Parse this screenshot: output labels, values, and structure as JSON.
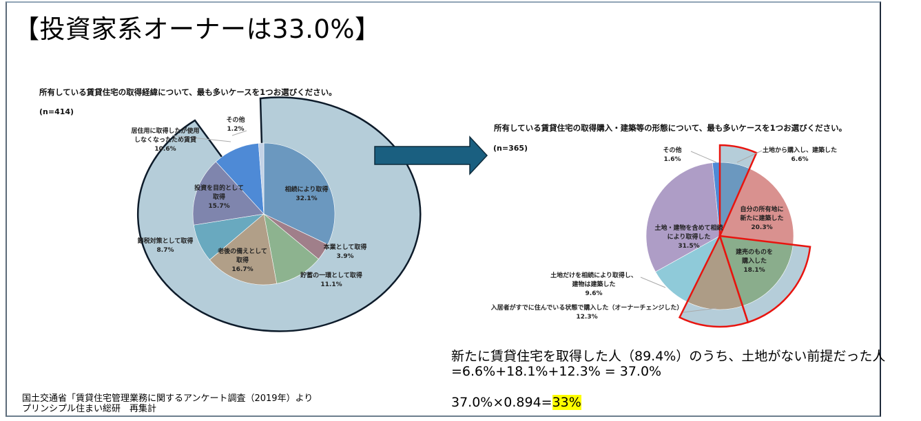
{
  "title": "【投資家系オーナーは33.0%】",
  "left_chart": {
    "question": "所有している賃貸住宅の取得経緯について、最も多いケースを1つお選びください。",
    "n": "(n=414)"
  },
  "right_chart": {
    "question": "所有している賃貸住宅の取得購入・建築等の形態について、最も多いケースを1つお選びください。",
    "n": "(n=365)"
  },
  "chart_data": [
    {
      "type": "pie",
      "title": "所有している賃貸住宅の取得経緯について、最も多いケースを1つお選びください。",
      "n": 414,
      "start_angle": "12 o'clock, clockwise",
      "categories": [
        "相続により取得",
        "本業として取得",
        "貯蓄の一環として取得",
        "老後の備えとして取得",
        "節税対策として取得",
        "投資を目的として取得",
        "居住用に取得したが使用しなくなったため賃貸",
        "その他"
      ],
      "values": [
        32.1,
        3.9,
        11.1,
        16.7,
        8.7,
        15.7,
        10.6,
        1.2
      ],
      "labels": [
        "32.1%",
        "3.9%",
        "11.1%",
        "16.7%",
        "8.7%",
        "15.7%",
        "10.6%",
        "1.2%"
      ],
      "colors": [
        "#6b98bf",
        "#a07f8a",
        "#8db38f",
        "#b19f88",
        "#69a9bf",
        "#7f85ad",
        "#4e8ad6",
        "#c3d2e6"
      ],
      "highlight": "外側の影付き扇形（投資系以外の大部分）で強調"
    },
    {
      "type": "pie",
      "title": "所有している賃貸住宅の取得購入・建築等の形態について、最も多いケースを1つお選びください。",
      "n": 365,
      "start_angle": "12 o'clock, clockwise",
      "categories": [
        "土地から購入し、建築した",
        "自分の所有地に新たに建築した",
        "建売のものを購入した",
        "入居者がすでに住んでいる状態で購入した（オーナーチェンジした）",
        "土地だけを相続により取得し、建物は建築した",
        "土地・建物を含めて相続により取得した",
        "その他"
      ],
      "values": [
        6.6,
        20.3,
        18.1,
        12.3,
        9.6,
        31.5,
        1.6
      ],
      "labels": [
        "6.6%",
        "20.3%",
        "18.1%",
        "12.3%",
        "9.6%",
        "31.5%",
        "1.6%"
      ],
      "colors": [
        "#6b98bf",
        "#d9918f",
        "#8aad8c",
        "#ad9c86",
        "#8fcad9",
        "#ae9dc6",
        "#4e8ad6"
      ],
      "highlight": [
        "土地から購入し、建築した",
        "建売のものを購入した",
        "入居者がすでに住んでいる状態で購入した（オーナーチェンジした）"
      ],
      "highlight_color": "#e8140f"
    }
  ],
  "labels_left": [
    {
      "text": "相続により取得",
      "pct": "32.1%"
    },
    {
      "text": "本業として取得",
      "pct": "3.9%"
    },
    {
      "text": "貯蓄の一環として取得",
      "pct": "11.1%"
    },
    {
      "text": "老後の備えとして",
      "text2": "取得",
      "pct": "16.7%"
    },
    {
      "text": "節税対策として取得",
      "pct": "8.7%"
    },
    {
      "text": "投資を目的として",
      "text2": "取得",
      "pct": "15.7%"
    },
    {
      "text": "居住用に取得したが使用",
      "text2": "しなくなったため賃貸",
      "pct": "10.6%"
    },
    {
      "text": "その他",
      "pct": "1.2%"
    }
  ],
  "labels_right": [
    {
      "text": "土地から購入し、建築した",
      "pct": "6.6%"
    },
    {
      "text": "自分の所有地に",
      "text2": "新たに建築した",
      "pct": "20.3%"
    },
    {
      "text": "建売のものを",
      "text2": "購入した",
      "pct": "18.1%"
    },
    {
      "text": "入居者がすでに住んでいる状態で購入した（オーナーチェンジした）",
      "pct": "12.3%"
    },
    {
      "text": "土地だけを相続により取得し、",
      "text2": "建物は建築した",
      "pct": "9.6%"
    },
    {
      "text": "土地・建物を含めて相続",
      "text2": "により取得した",
      "pct": "31.5%"
    },
    {
      "text": "その他",
      "pct": "1.6%"
    }
  ],
  "calculation": {
    "line1": "新たに賃貸住宅を取得した人（89.4%）のうち、土地がない前提だった人",
    "line2": "=6.6%+18.1%+12.3%  =  37.0%",
    "line3_prefix": "37.0%×0.894=",
    "line3_result": "33%"
  },
  "source": {
    "line1": "国土交通省「賃貸住宅管理業務に関するアンケート調査（2019年）より",
    "line2": "プリンシプル住まい総研　再集計"
  },
  "colors": {
    "arrow": "#1a5f80",
    "highlight_fill": "#b5cdd9",
    "left_outline": "#0d1b2a",
    "right_outline": "#e8140f",
    "result_highlight": "#ffff00"
  }
}
